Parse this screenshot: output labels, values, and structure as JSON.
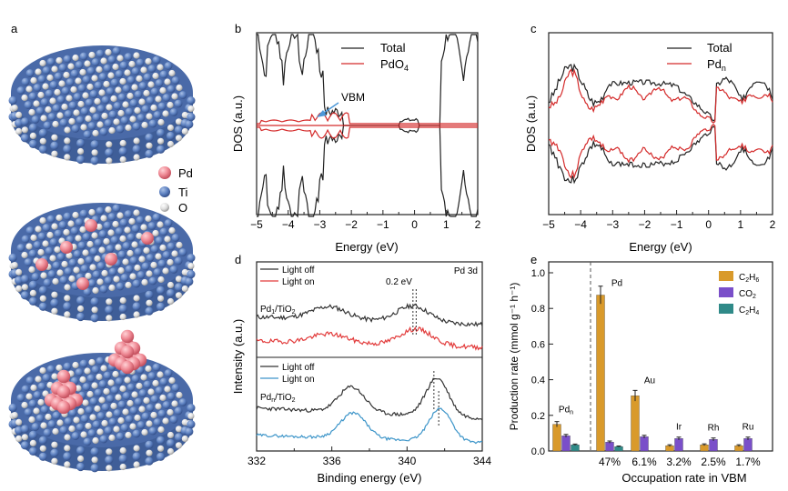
{
  "panel_letters": {
    "a": "a",
    "b": "b",
    "c": "c",
    "d": "d",
    "e": "e"
  },
  "panel_a": {
    "legend": [
      {
        "label": "Pd",
        "color": "#ee8a94"
      },
      {
        "label": "Ti",
        "color": "#5b7fbf"
      },
      {
        "label": "O",
        "color": "#d6d6d6"
      }
    ]
  },
  "panel_b": {
    "ylabel": "DOS (a.u.)",
    "xlabel": "Energy (eV)",
    "xticks": [
      "−5",
      "−4",
      "−3",
      "−2",
      "−1",
      "0",
      "1",
      "2"
    ],
    "legend": [
      {
        "label": "Total",
        "color": "#222222"
      },
      {
        "label": "PdO",
        "sub": "4",
        "color": "#d42a2a"
      }
    ],
    "annotation": "VBM"
  },
  "panel_c": {
    "ylabel": "DOS (a.u.)",
    "xlabel": "Energy (eV)",
    "xticks": [
      "−5",
      "−4",
      "−3",
      "−2",
      "−1",
      "0",
      "1",
      "2"
    ],
    "legend": [
      {
        "label": "Total",
        "color": "#222222"
      },
      {
        "label": "Pd",
        "sub": "n",
        "color": "#d42a2a"
      }
    ]
  },
  "panel_d": {
    "ylabel": "Intensity (a.u.)",
    "xlabel": "Binding energy (eV)",
    "xticks": [
      "344",
      "340",
      "336",
      "332"
    ],
    "corner_label": "Pd 3d",
    "shift_label": "0.2 eV",
    "top": {
      "sample": "Pd",
      "sample_sub": "1",
      "sample_suffix": "/TiO",
      "sample_suffix_sub": "2",
      "legend": [
        {
          "label": "Light off",
          "color": "#333333"
        },
        {
          "label": "Light on",
          "color": "#e23b3b"
        }
      ]
    },
    "bottom": {
      "sample": "Pd",
      "sample_sub": "n",
      "sample_suffix": "/TiO",
      "sample_suffix_sub": "2",
      "legend": [
        {
          "label": "Light off",
          "color": "#333333"
        },
        {
          "label": "Light on",
          "color": "#3d95c9"
        }
      ]
    }
  },
  "chart_data": [
    {
      "panel": "e",
      "type": "bar",
      "ylabel": "Production rate (mmol g⁻¹ h⁻¹)",
      "xlabel": "Occupation rate in VBM",
      "ylim": [
        0,
        1.0
      ],
      "yticks": [
        "0.0",
        "0.2",
        "0.4",
        "0.6",
        "0.8",
        "1.0"
      ],
      "categories": [
        "Pdn",
        "Pd",
        "Au",
        "Ir",
        "Rh",
        "Ru"
      ],
      "metal_labels": [
        {
          "main": "Pd",
          "sub": "n"
        },
        {
          "main": "Pd",
          "sub": ""
        },
        {
          "main": "Au",
          "sub": ""
        },
        {
          "main": "Ir",
          "sub": ""
        },
        {
          "main": "Rh",
          "sub": ""
        },
        {
          "main": "Ru",
          "sub": ""
        }
      ],
      "occupation_labels": [
        "",
        "47%",
        "6.1%",
        "3.2%",
        "2.5%",
        "1.7%"
      ],
      "series": [
        {
          "name": "C2H6",
          "label_main": "C",
          "label_parts": [
            [
              "C",
              ""
            ],
            [
              "2",
              "sub"
            ],
            [
              "H",
              ""
            ],
            [
              "6",
              "sub"
            ]
          ],
          "color": "#d99a2b",
          "values": [
            0.15,
            0.875,
            0.31,
            0.03,
            0.035,
            0.03
          ],
          "errors": [
            0.015,
            0.05,
            0.03,
            0.005,
            0.005,
            0.005
          ]
        },
        {
          "name": "CO2",
          "label_parts": [
            [
              "CO",
              ""
            ],
            [
              "2",
              "sub"
            ]
          ],
          "color": "#7a4fc9",
          "values": [
            0.085,
            0.05,
            0.08,
            0.07,
            0.065,
            0.07
          ],
          "errors": [
            0.008,
            0.006,
            0.008,
            0.008,
            0.008,
            0.008
          ]
        },
        {
          "name": "C2H4",
          "label_parts": [
            [
              "C",
              ""
            ],
            [
              "2",
              "sub"
            ],
            [
              "H",
              ""
            ],
            [
              "4",
              "sub"
            ]
          ],
          "color": "#2f8a88",
          "values": [
            0.035,
            0.025,
            0,
            0,
            0,
            0
          ],
          "errors": [
            0.004,
            0.003,
            0,
            0,
            0,
            0
          ]
        }
      ],
      "legend_position": "top-right"
    }
  ],
  "colors": {
    "axis": "#222222",
    "red": "#d42a2a",
    "black": "#222222",
    "blue": "#3d95c9",
    "arrow": "#4c98d8"
  }
}
